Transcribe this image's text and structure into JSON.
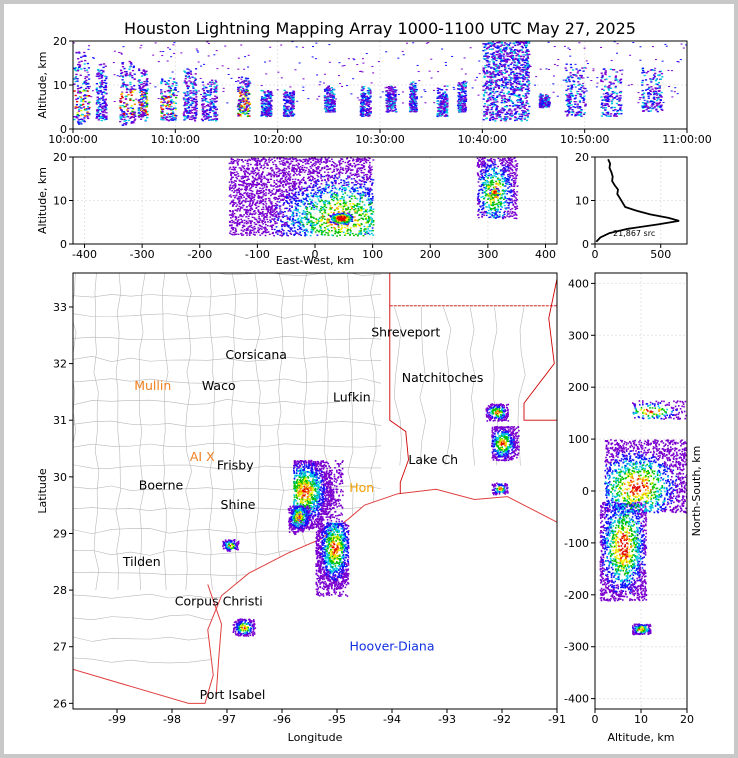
{
  "title": "Houston Lightning Mapping Array 1000-1100 UTC May 27, 2025",
  "colors": {
    "background": "#ffffff",
    "frame": "#c8c8c8",
    "county_lines": "#b8b8b8",
    "state_lines": "#d00000",
    "coast": "#e04040",
    "density_scale": [
      "#7a00d0",
      "#1010ff",
      "#00c8e0",
      "#00c000",
      "#f0f000",
      "#ff8000",
      "#e00000",
      "#ffffff"
    ]
  },
  "chart_data": [
    {
      "name": "time_height",
      "type": "scatter",
      "ylabel": "Altitude, km",
      "ylim": [
        0,
        20
      ],
      "yticks": [
        0,
        10,
        20
      ],
      "xlim": [
        "10:00:00",
        "11:00:00"
      ],
      "xticks": [
        "10:00:00",
        "10:10:00",
        "10:20:00",
        "10:30:00",
        "10:40:00",
        "10:50:00",
        "11:00:00"
      ],
      "grid": true,
      "activity_clusters_minutes": [
        {
          "t": [
            0,
            1.5
          ],
          "z": [
            1,
            18
          ],
          "peak": true
        },
        {
          "t": [
            2.2,
            3.2
          ],
          "z": [
            2,
            15
          ]
        },
        {
          "t": [
            4.5,
            6
          ],
          "z": [
            1,
            16
          ],
          "peak": true
        },
        {
          "t": [
            6.3,
            7.2
          ],
          "z": [
            2,
            14
          ],
          "peak": true
        },
        {
          "t": [
            8.5,
            10
          ],
          "z": [
            2,
            13
          ],
          "peak": true
        },
        {
          "t": [
            10.7,
            12
          ],
          "z": [
            2,
            14
          ]
        },
        {
          "t": [
            12.5,
            14
          ],
          "z": [
            2,
            12
          ]
        },
        {
          "t": [
            16,
            17.2
          ],
          "z": [
            3,
            12
          ],
          "peak": true
        },
        {
          "t": [
            18.3,
            19.3
          ],
          "z": [
            3,
            9
          ]
        },
        {
          "t": [
            20.5,
            21.5
          ],
          "z": [
            3,
            9
          ]
        },
        {
          "t": [
            24.5,
            25.5
          ],
          "z": [
            4,
            10
          ]
        },
        {
          "t": [
            28,
            29
          ],
          "z": [
            3,
            10
          ]
        },
        {
          "t": [
            30.5,
            31.5
          ],
          "z": [
            4,
            10
          ]
        },
        {
          "t": [
            32.8,
            33.5
          ],
          "z": [
            4,
            11
          ]
        },
        {
          "t": [
            35.5,
            36.5
          ],
          "z": [
            3,
            10
          ]
        },
        {
          "t": [
            37.5,
            38.3
          ],
          "z": [
            4,
            11
          ]
        },
        {
          "t": [
            40,
            44.5
          ],
          "z": [
            2,
            20
          ],
          "dense": true
        },
        {
          "t": [
            45.5,
            46.5
          ],
          "z": [
            5,
            8
          ]
        },
        {
          "t": [
            48,
            50
          ],
          "z": [
            3,
            15
          ]
        },
        {
          "t": [
            51.5,
            53.5
          ],
          "z": [
            3,
            14
          ]
        },
        {
          "t": [
            55.5,
            57.5
          ],
          "z": [
            4,
            14
          ]
        }
      ]
    },
    {
      "name": "east_west_altitude",
      "type": "scatter",
      "xlabel": "East-West, km",
      "ylabel": "Altitude, km",
      "xlim": [
        -420,
        420
      ],
      "xticks": [
        -400,
        -300,
        -200,
        -100,
        0,
        100,
        200,
        300,
        400
      ],
      "ylim": [
        0,
        20
      ],
      "yticks": [
        0,
        10,
        20
      ],
      "grid": true,
      "clusters": [
        {
          "x": [
            -150,
            100
          ],
          "z": [
            2,
            20
          ],
          "core_x": 45,
          "core_z": 6
        },
        {
          "x": [
            280,
            350
          ],
          "z": [
            6,
            20
          ],
          "core_x": 310,
          "core_z": 12
        }
      ]
    },
    {
      "name": "altitude_histogram",
      "type": "line",
      "xlim": [
        0,
        700
      ],
      "xticks": [
        0,
        500
      ],
      "ylim": [
        0,
        20
      ],
      "yticks": [
        0,
        10,
        20
      ],
      "annotation": "21,867 src",
      "profile": [
        {
          "count": 10,
          "z": 0.5
        },
        {
          "count": 40,
          "z": 1.5
        },
        {
          "count": 110,
          "z": 2.5
        },
        {
          "count": 250,
          "z": 3.5
        },
        {
          "count": 480,
          "z": 4.5
        },
        {
          "count": 640,
          "z": 5.3
        },
        {
          "count": 560,
          "z": 6.0
        },
        {
          "count": 420,
          "z": 6.8
        },
        {
          "count": 320,
          "z": 7.6
        },
        {
          "count": 230,
          "z": 8.5
        },
        {
          "count": 210,
          "z": 9.5
        },
        {
          "count": 190,
          "z": 10.5
        },
        {
          "count": 170,
          "z": 11.5
        },
        {
          "count": 175,
          "z": 12.5
        },
        {
          "count": 150,
          "z": 13.5
        },
        {
          "count": 130,
          "z": 14.5
        },
        {
          "count": 135,
          "z": 15.5
        },
        {
          "count": 125,
          "z": 16.5
        },
        {
          "count": 110,
          "z": 17.5
        },
        {
          "count": 115,
          "z": 18.5
        },
        {
          "count": 100,
          "z": 19.5
        }
      ]
    },
    {
      "name": "plan_view",
      "type": "scatter",
      "xlabel": "Longitude",
      "ylabel": "Latitude",
      "xlim": [
        -99.8,
        -91
      ],
      "xticks": [
        -99,
        -98,
        -97,
        -96,
        -95,
        -94,
        -93,
        -92,
        -91
      ],
      "ylim": [
        25.9,
        33.6
      ],
      "yticks": [
        26,
        27,
        28,
        29,
        30,
        31,
        32,
        33
      ],
      "cities": [
        {
          "name": "Shreveport",
          "lon": -93.75,
          "lat": 32.55,
          "color": "#000000"
        },
        {
          "name": "Corsicana",
          "lon": -96.47,
          "lat": 32.15,
          "color": "#000000"
        },
        {
          "name": "Natchitoches",
          "lon": -93.08,
          "lat": 31.75,
          "color": "#000000"
        },
        {
          "name": "Mullin",
          "lon": -98.35,
          "lat": 31.6,
          "color": "#f08020"
        },
        {
          "name": "Waco",
          "lon": -97.15,
          "lat": 31.6,
          "color": "#000000"
        },
        {
          "name": "Lufkin",
          "lon": -94.73,
          "lat": 31.4,
          "color": "#000000"
        },
        {
          "name": "Lake Ch",
          "lon": -93.25,
          "lat": 30.3,
          "color": "#000000"
        },
        {
          "name": "AI X",
          "lon": -97.45,
          "lat": 30.35,
          "color": "#f08020"
        },
        {
          "name": "Frisby",
          "lon": -96.85,
          "lat": 30.2,
          "color": "#000000"
        },
        {
          "name": "Boerne",
          "lon": -98.2,
          "lat": 29.85,
          "color": "#000000"
        },
        {
          "name": "Hon",
          "lon": -94.55,
          "lat": 29.8,
          "color": "#f0a000"
        },
        {
          "name": "Shine",
          "lon": -96.8,
          "lat": 29.5,
          "color": "#000000"
        },
        {
          "name": "Tilden",
          "lon": -98.55,
          "lat": 28.5,
          "color": "#000000"
        },
        {
          "name": "Corpus Christi",
          "lon": -97.15,
          "lat": 27.8,
          "color": "#000000"
        },
        {
          "name": "Hoover-Diana",
          "lon": -94.0,
          "lat": 27.0,
          "color": "#1030e0"
        },
        {
          "name": "Port Isabel",
          "lon": -96.9,
          "lat": 26.15,
          "color": "#000000"
        }
      ],
      "clusters": [
        {
          "lon": [
            -95.8,
            -94.9
          ],
          "lat": [
            29.1,
            30.3
          ],
          "core": [
            -95.6,
            29.75
          ]
        },
        {
          "lon": [
            -95.4,
            -94.8
          ],
          "lat": [
            27.9,
            29.2
          ],
          "core": [
            -95.05,
            28.75
          ]
        },
        {
          "lon": [
            -95.9,
            -95.5
          ],
          "lat": [
            29.0,
            29.5
          ],
          "core": [
            -95.7,
            29.3
          ]
        },
        {
          "lon": [
            -92.3,
            -91.9
          ],
          "lat": [
            31.0,
            31.3
          ],
          "core": [
            -92.1,
            31.15
          ]
        },
        {
          "lon": [
            -92.2,
            -91.7
          ],
          "lat": [
            30.3,
            30.9
          ],
          "core": [
            -92.0,
            30.6
          ]
        },
        {
          "lon": [
            -92.2,
            -91.9
          ],
          "lat": [
            29.7,
            29.9
          ],
          "core": [
            -92.05,
            29.8
          ]
        },
        {
          "lon": [
            -97.1,
            -96.8
          ],
          "lat": [
            28.7,
            28.9
          ],
          "core": [
            -96.95,
            28.8
          ]
        },
        {
          "lon": [
            -96.9,
            -96.5
          ],
          "lat": [
            27.2,
            27.5
          ],
          "core": [
            -96.7,
            27.35
          ]
        }
      ]
    },
    {
      "name": "altitude_north_south",
      "type": "scatter",
      "xlabel": "Altitude, km",
      "ylabel": "North-South, km",
      "xlim": [
        0,
        20
      ],
      "xticks": [
        0,
        10,
        20
      ],
      "ylim": [
        -420,
        420
      ],
      "yticks": [
        -400,
        -300,
        -200,
        -100,
        0,
        100,
        200,
        300,
        400
      ],
      "clusters": [
        {
          "z": [
            1,
            11
          ],
          "y": [
            -210,
            -20
          ],
          "core_z": 6,
          "core_y": -105
        },
        {
          "z": [
            2,
            20
          ],
          "y": [
            -40,
            100
          ],
          "core_z": 9,
          "core_y": 10
        },
        {
          "z": [
            8,
            20
          ],
          "y": [
            140,
            175
          ],
          "core_z": 12,
          "core_y": 155
        },
        {
          "z": [
            8,
            12
          ],
          "y": [
            -275,
            -255
          ],
          "core_z": 10,
          "core_y": -265
        }
      ]
    }
  ]
}
